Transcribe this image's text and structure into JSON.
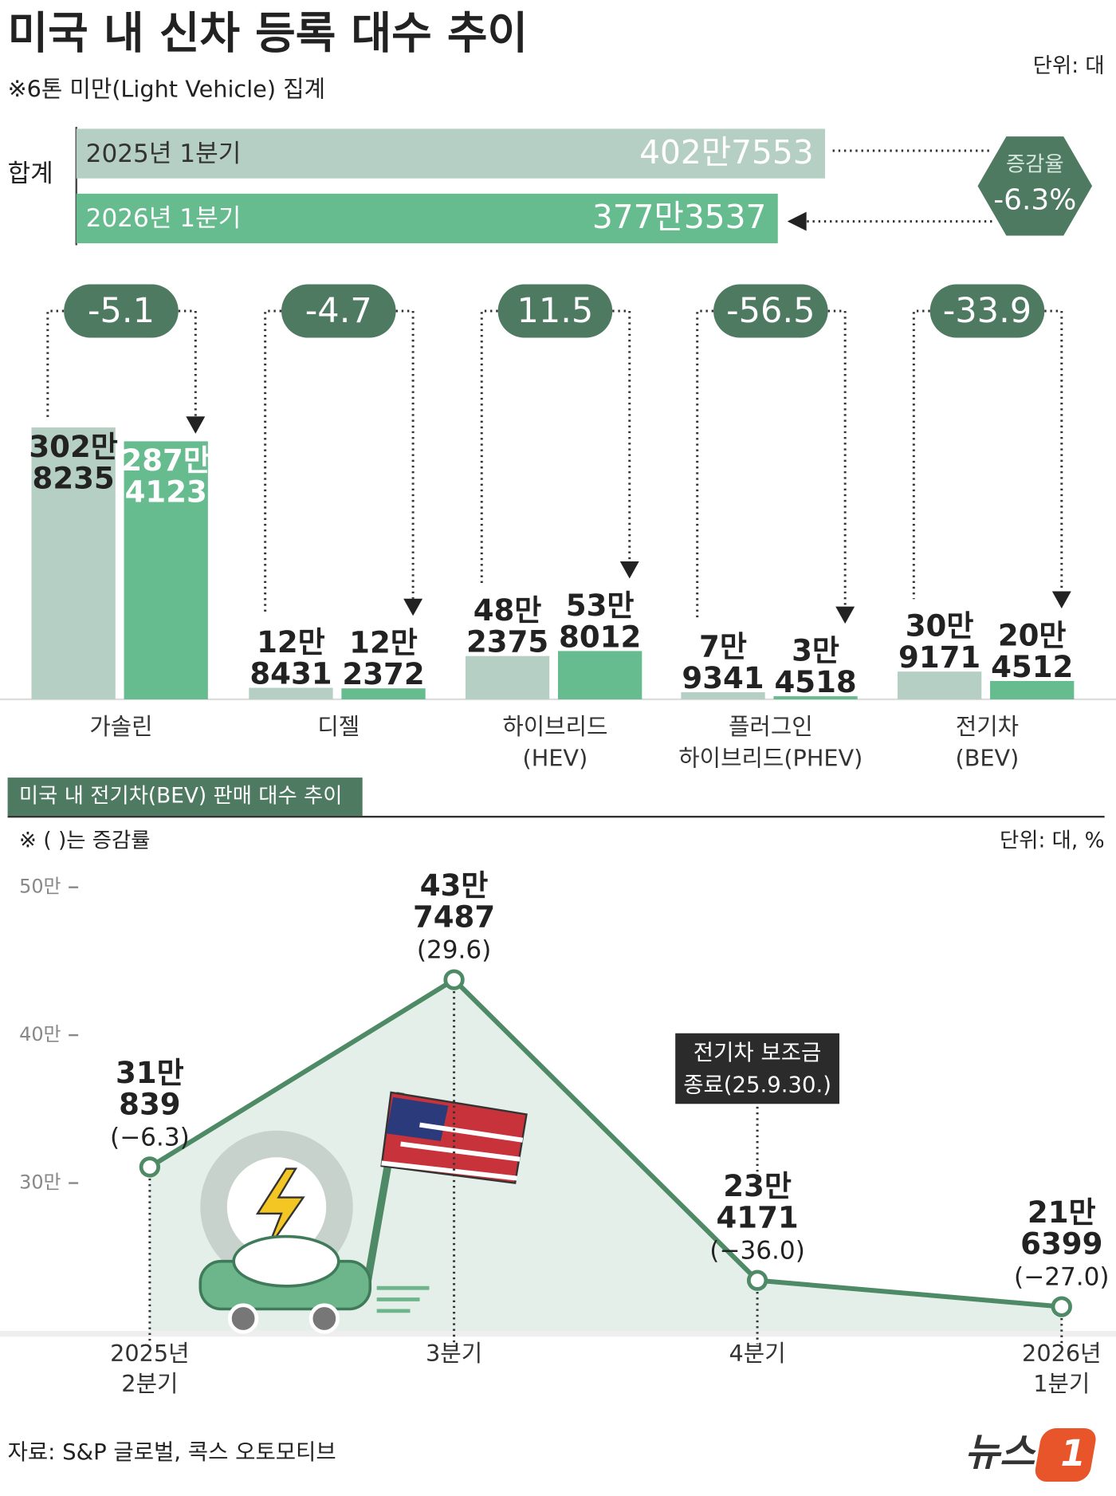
{
  "header": {
    "title": "미국 내 신차 등록 대수 추이",
    "subtitle": "※6톤 미만(Light Vehicle) 집계",
    "unit": "단위: 대"
  },
  "chart_data": [
    {
      "type": "hbar",
      "label": "합계",
      "categories": [
        "2025년 1분기",
        "2026년 1분기"
      ],
      "values": [
        4027553,
        3773537
      ],
      "value_labels": [
        "402만7553",
        "377만3537"
      ],
      "colors": [
        "#b5cfc5",
        "#66bc8e"
      ],
      "change": {
        "title": "증감율",
        "value": -6.3,
        "label": "-6.3%"
      }
    },
    {
      "type": "grouped-bar",
      "categories": [
        [
          "가솔린"
        ],
        [
          "디젤"
        ],
        [
          "하이브리드",
          "(HEV)"
        ],
        [
          "플러그인",
          "하이브리드(PHEV)"
        ],
        [
          "전기차",
          "(BEV)"
        ]
      ],
      "series": [
        {
          "color": "#b5cfc5",
          "values": [
            3028235,
            128431,
            482375,
            79341,
            309171
          ],
          "value_labels": [
            [
              "302만",
              "8235"
            ],
            [
              "12만",
              "8431"
            ],
            [
              "48만",
              "2375"
            ],
            [
              "7만",
              "9341"
            ],
            [
              "30만",
              "9171"
            ]
          ]
        },
        {
          "color": "#66bc8e",
          "values": [
            2874123,
            122372,
            538012,
            34518,
            204512
          ],
          "value_labels": [
            [
              "287만",
              "4123"
            ],
            [
              "12만",
              "2372"
            ],
            [
              "53만",
              "8012"
            ],
            [
              "3만",
              "4518"
            ],
            [
              "20만",
              "4512"
            ]
          ]
        }
      ],
      "changes": [
        -5.1,
        -4.7,
        11.5,
        -56.5,
        -33.9
      ]
    },
    {
      "type": "line",
      "title": "미국 내 전기차(BEV) 판매 대수 추이",
      "note": "※ ( )는 증감률",
      "unit": "단위: 대, %",
      "categories": [
        [
          "2025년",
          "2분기"
        ],
        [
          "3분기"
        ],
        [
          "4분기"
        ],
        [
          "2026년",
          "1분기"
        ]
      ],
      "values": [
        310839,
        437487,
        234171,
        216399
      ],
      "value_labels": [
        [
          "31만",
          "839"
        ],
        [
          "43만",
          "7487"
        ],
        [
          "23만",
          "4171"
        ],
        [
          "21만",
          "6399"
        ]
      ],
      "changes": [
        -6.3,
        29.6,
        -36.0,
        -27.0
      ],
      "change_labels": [
        "(−6.3)",
        "(29.6)",
        "(−36.0)",
        "(−27.0)"
      ],
      "ylim": [
        200000,
        500000
      ],
      "yticks": [
        {
          "value": 300000,
          "label": "30만"
        },
        {
          "value": 400000,
          "label": "40만"
        },
        {
          "value": 500000,
          "label": "50만"
        }
      ],
      "color": "#4e8a66",
      "annotation": [
        "전기차 보조금",
        "종료(25.9.30.)"
      ]
    }
  ],
  "source": "자료: S&P 글로벌, 콕스 오토모티브",
  "logo": [
    "뉴스",
    "1"
  ]
}
